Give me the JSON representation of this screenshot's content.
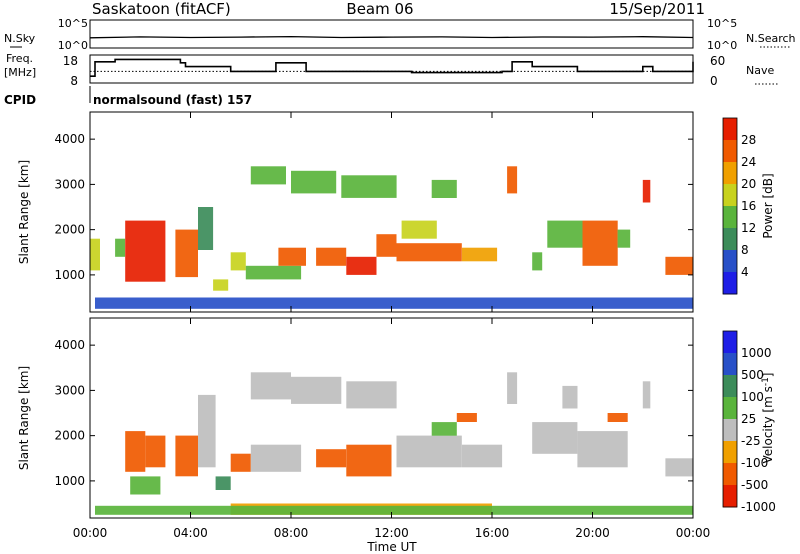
{
  "header": {
    "station": "Saskatoon (fitACF)",
    "beam": "Beam 06",
    "date": "15/Sep/2011"
  },
  "noise_panel": {
    "left_label": "N.Sky",
    "right_label": "N.Search",
    "left_ticks": [
      "10^5",
      "10^0"
    ],
    "right_ticks": [
      "10^5",
      "10^0"
    ]
  },
  "freq_panel": {
    "left_label_line1": "Freq.",
    "left_label_line2": "[MHz]",
    "right_label": "Nave",
    "left_ticks": [
      "18",
      "8"
    ],
    "right_ticks": [
      "60",
      "0"
    ]
  },
  "cpid": {
    "label": "CPID",
    "value": "normalsound (fast) 157"
  },
  "time_axis": {
    "label": "Time UT",
    "ticks": [
      "00:00",
      "04:00",
      "08:00",
      "12:00",
      "16:00",
      "20:00",
      "00:00"
    ]
  },
  "colors": {
    "power_scale": [
      "#1e1ee6",
      "#2850c8",
      "#3c8c5a",
      "#5ab43c",
      "#c8d21e",
      "#f0a000",
      "#f05a00",
      "#e61e00"
    ],
    "velocity_scale": [
      "#1e1ee6",
      "#2850c8",
      "#3c8c5a",
      "#5ab43c",
      "#bebebe",
      "#f0a000",
      "#f05a00",
      "#e61e00"
    ]
  },
  "chart_data": [
    {
      "type": "line",
      "panel": "noise",
      "series": [
        {
          "name": "N.Sky",
          "x": [
            0,
            2,
            4,
            6,
            8,
            10,
            12,
            14,
            16,
            18,
            20,
            22,
            24
          ],
          "y": [
            50,
            80,
            60,
            70,
            90,
            60,
            70,
            80,
            60,
            75,
            70,
            85,
            60
          ]
        }
      ],
      "y_scale": "log",
      "ylim_ticks": [
        "10^0",
        "10^5"
      ],
      "xlim": [
        0,
        24
      ]
    },
    {
      "type": "line",
      "panel": "frequency",
      "series": [
        {
          "name": "Freq.",
          "x": [
            0,
            0.2,
            1,
            3.6,
            3.8,
            5.6,
            7.4,
            8.6,
            9.8,
            11.6,
            12.8,
            16.4,
            16.8,
            17.6,
            19.4,
            20.6,
            21.6,
            22,
            22.4,
            23.2,
            24
          ],
          "y": [
            10,
            16,
            17,
            15.6,
            14,
            12,
            15.6,
            12,
            12,
            12,
            11.5,
            12,
            16,
            14,
            12,
            12,
            12,
            14,
            12,
            12,
            16
          ]
        },
        {
          "name": "Nave",
          "x": [
            0,
            24
          ],
          "y": [
            24,
            24
          ]
        }
      ],
      "ylim": [
        8,
        18
      ],
      "y2lim": [
        0,
        60
      ],
      "xlim": [
        0,
        24
      ]
    },
    {
      "type": "heatmap",
      "panel": "power",
      "xlabel": "",
      "ylabel": "Slant Range [km]",
      "x_ticks": [
        "00:00",
        "04:00",
        "08:00",
        "12:00",
        "16:00",
        "20:00",
        "00:00"
      ],
      "y_ticks": [
        1000,
        2000,
        3000,
        4000
      ],
      "ylim": [
        180,
        4600
      ],
      "xlim": [
        0,
        24
      ],
      "colorbar_label": "Power [dB]",
      "colorbar_ticks": [
        4,
        8,
        12,
        16,
        20,
        24,
        28
      ],
      "regions": [
        {
          "t0": 0.0,
          "t1": 0.4,
          "r0": 1100,
          "r1": 1800,
          "value": 18
        },
        {
          "t0": 1.0,
          "t1": 1.4,
          "r0": 1400,
          "r1": 1800,
          "value": 14
        },
        {
          "t0": 1.4,
          "t1": 3.0,
          "r0": 850,
          "r1": 2200,
          "value": 28
        },
        {
          "t0": 3.4,
          "t1": 4.3,
          "r0": 950,
          "r1": 2000,
          "value": 27
        },
        {
          "t0": 4.3,
          "t1": 4.9,
          "r0": 1550,
          "r1": 2500,
          "value": 10
        },
        {
          "t0": 4.9,
          "t1": 5.5,
          "r0": 650,
          "r1": 900,
          "value": 16
        },
        {
          "t0": 5.6,
          "t1": 6.2,
          "r0": 1100,
          "r1": 1500,
          "value": 18
        },
        {
          "t0": 6.2,
          "t1": 8.4,
          "r0": 900,
          "r1": 1200,
          "value": 14
        },
        {
          "t0": 6.4,
          "t1": 7.8,
          "r0": 3000,
          "r1": 3400,
          "value": 13
        },
        {
          "t0": 7.5,
          "t1": 8.6,
          "r0": 1200,
          "r1": 1600,
          "value": 26
        },
        {
          "t0": 8.0,
          "t1": 9.8,
          "r0": 2800,
          "r1": 3300,
          "value": 15
        },
        {
          "t0": 9.0,
          "t1": 10.2,
          "r0": 1200,
          "r1": 1600,
          "value": 24
        },
        {
          "t0": 10.2,
          "t1": 11.4,
          "r0": 1000,
          "r1": 1400,
          "value": 28
        },
        {
          "t0": 10.0,
          "t1": 12.2,
          "r0": 2700,
          "r1": 3200,
          "value": 13
        },
        {
          "t0": 11.4,
          "t1": 12.2,
          "r0": 1400,
          "r1": 1900,
          "value": 27
        },
        {
          "t0": 12.2,
          "t1": 14.8,
          "r0": 1300,
          "r1": 1700,
          "value": 27
        },
        {
          "t0": 12.4,
          "t1": 13.8,
          "r0": 1800,
          "r1": 2200,
          "value": 18
        },
        {
          "t0": 13.6,
          "t1": 14.6,
          "r0": 2700,
          "r1": 3100,
          "value": 12
        },
        {
          "t0": 14.8,
          "t1": 16.2,
          "r0": 1300,
          "r1": 1600,
          "value": 22
        },
        {
          "t0": 16.6,
          "t1": 17.0,
          "r0": 2800,
          "r1": 3400,
          "value": 26
        },
        {
          "t0": 17.6,
          "t1": 18.0,
          "r0": 1100,
          "r1": 1500,
          "value": 12
        },
        {
          "t0": 18.2,
          "t1": 19.6,
          "r0": 1600,
          "r1": 2200,
          "value": 15
        },
        {
          "t0": 19.6,
          "t1": 21.0,
          "r0": 1200,
          "r1": 2200,
          "value": 27
        },
        {
          "t0": 21.0,
          "t1": 21.5,
          "r0": 1600,
          "r1": 2000,
          "value": 12
        },
        {
          "t0": 22.0,
          "t1": 22.3,
          "r0": 2600,
          "r1": 3100,
          "value": 28
        },
        {
          "t0": 22.9,
          "t1": 24.0,
          "r0": 1000,
          "r1": 1400,
          "value": 27
        },
        {
          "t0": 0.2,
          "t1": 24.0,
          "r0": 250,
          "r1": 500,
          "value": 6
        }
      ]
    },
    {
      "type": "heatmap",
      "panel": "velocity",
      "xlabel": "Time UT",
      "ylabel": "Slant Range [km]",
      "x_ticks": [
        "00:00",
        "04:00",
        "08:00",
        "12:00",
        "16:00",
        "20:00",
        "00:00"
      ],
      "y_ticks": [
        1000,
        2000,
        3000,
        4000
      ],
      "ylim": [
        180,
        4600
      ],
      "xlim": [
        0,
        24
      ],
      "colorbar_label": "Velocity [m s^-1]",
      "colorbar_ticks": [
        1000,
        500,
        100,
        25,
        -25,
        -100,
        -500,
        -1000
      ],
      "regions": [
        {
          "t0": 1.4,
          "t1": 2.2,
          "r0": 1200,
          "r1": 2100,
          "value": -200
        },
        {
          "t0": 2.2,
          "t1": 3.0,
          "r0": 1300,
          "r1": 2000,
          "value": -150
        },
        {
          "t0": 1.6,
          "t1": 2.8,
          "r0": 700,
          "r1": 1100,
          "value": 60
        },
        {
          "t0": 3.4,
          "t1": 4.3,
          "r0": 1100,
          "r1": 2000,
          "value": -250
        },
        {
          "t0": 4.3,
          "t1": 5.0,
          "r0": 1300,
          "r1": 2900,
          "value": 0
        },
        {
          "t0": 5.0,
          "t1": 5.6,
          "r0": 800,
          "r1": 1100,
          "value": 300
        },
        {
          "t0": 5.6,
          "t1": 6.4,
          "r0": 1200,
          "r1": 1600,
          "value": -300
        },
        {
          "t0": 6.4,
          "t1": 8.0,
          "r0": 2800,
          "r1": 3400,
          "value": 0
        },
        {
          "t0": 6.4,
          "t1": 8.4,
          "r0": 1200,
          "r1": 1800,
          "value": 0
        },
        {
          "t0": 8.0,
          "t1": 10.0,
          "r0": 2700,
          "r1": 3300,
          "value": 0
        },
        {
          "t0": 9.0,
          "t1": 10.2,
          "r0": 1300,
          "r1": 1700,
          "value": -400
        },
        {
          "t0": 10.2,
          "t1": 12.0,
          "r0": 1100,
          "r1": 1800,
          "value": -150
        },
        {
          "t0": 10.2,
          "t1": 12.2,
          "r0": 2600,
          "r1": 3200,
          "value": 0
        },
        {
          "t0": 12.2,
          "t1": 14.8,
          "r0": 1300,
          "r1": 2000,
          "value": 0
        },
        {
          "t0": 13.6,
          "t1": 14.6,
          "r0": 2000,
          "r1": 2300,
          "value": 50
        },
        {
          "t0": 14.6,
          "t1": 15.4,
          "r0": 2300,
          "r1": 2500,
          "value": -300
        },
        {
          "t0": 14.8,
          "t1": 16.4,
          "r0": 1300,
          "r1": 1800,
          "value": 0
        },
        {
          "t0": 16.6,
          "t1": 17.0,
          "r0": 2700,
          "r1": 3400,
          "value": 0
        },
        {
          "t0": 17.6,
          "t1": 19.4,
          "r0": 1600,
          "r1": 2300,
          "value": 0
        },
        {
          "t0": 18.8,
          "t1": 19.4,
          "r0": 2600,
          "r1": 3100,
          "value": 0
        },
        {
          "t0": 19.4,
          "t1": 21.4,
          "r0": 1300,
          "r1": 2100,
          "value": 0
        },
        {
          "t0": 20.6,
          "t1": 21.4,
          "r0": 2300,
          "r1": 2500,
          "value": -400
        },
        {
          "t0": 22.0,
          "t1": 22.3,
          "r0": 2600,
          "r1": 3200,
          "value": 0
        },
        {
          "t0": 22.9,
          "t1": 24.0,
          "r0": 1100,
          "r1": 1500,
          "value": 0
        },
        {
          "t0": 5.6,
          "t1": 16.0,
          "r0": 250,
          "r1": 500,
          "value": -60
        },
        {
          "t0": 0.2,
          "t1": 24.0,
          "r0": 250,
          "r1": 450,
          "value": 40
        }
      ]
    }
  ]
}
